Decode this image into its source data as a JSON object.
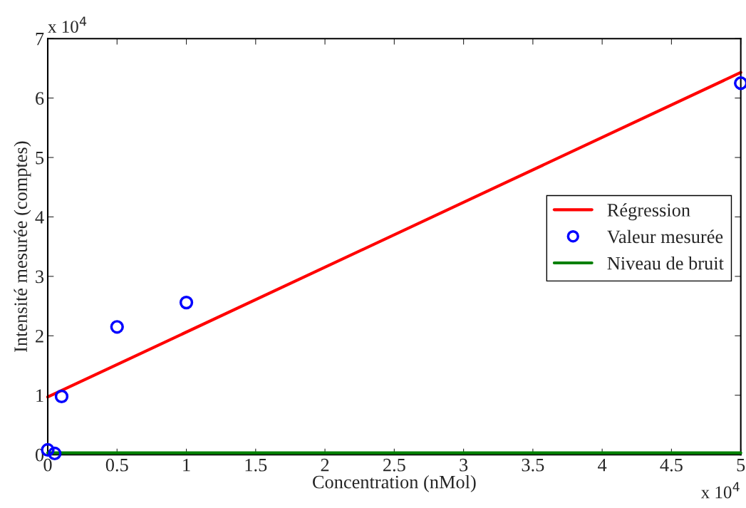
{
  "chart_data": {
    "type": "scatter",
    "xlabel": "Concentration (nMol)",
    "ylabel": "Intensité mesurée (comptes)",
    "xlim": [
      0,
      5
    ],
    "ylim": [
      0,
      7
    ],
    "xticks": [
      0,
      0.5,
      1,
      1.5,
      2,
      2.5,
      3,
      3.5,
      4,
      4.5,
      5
    ],
    "yticks": [
      0,
      1,
      2,
      3,
      4,
      5,
      6,
      7
    ],
    "series": [
      {
        "name": "Régression",
        "type": "line",
        "color": "#ff0000",
        "x": [
          0,
          5
        ],
        "values": [
          0.97,
          6.43
        ],
        "marker": "none",
        "line_style": "solid"
      },
      {
        "name": "Valeur mesurée",
        "color": "#0000ff",
        "x": [
          0,
          0.05,
          0.1,
          0.5,
          1,
          5
        ],
        "values": [
          0.08,
          0.02,
          0.98,
          2.15,
          2.56,
          6.25
        ],
        "marker": "circle"
      },
      {
        "name": "Niveau de bruit",
        "type": "line",
        "color": "#008000",
        "x": [
          0,
          5
        ],
        "values": [
          0.03,
          0.03
        ],
        "marker": "none",
        "line_style": "solid"
      }
    ],
    "legend": "right",
    "annotations": [
      "x 10$^{4}$",
      "x 10$^{4}$"
    ]
  }
}
